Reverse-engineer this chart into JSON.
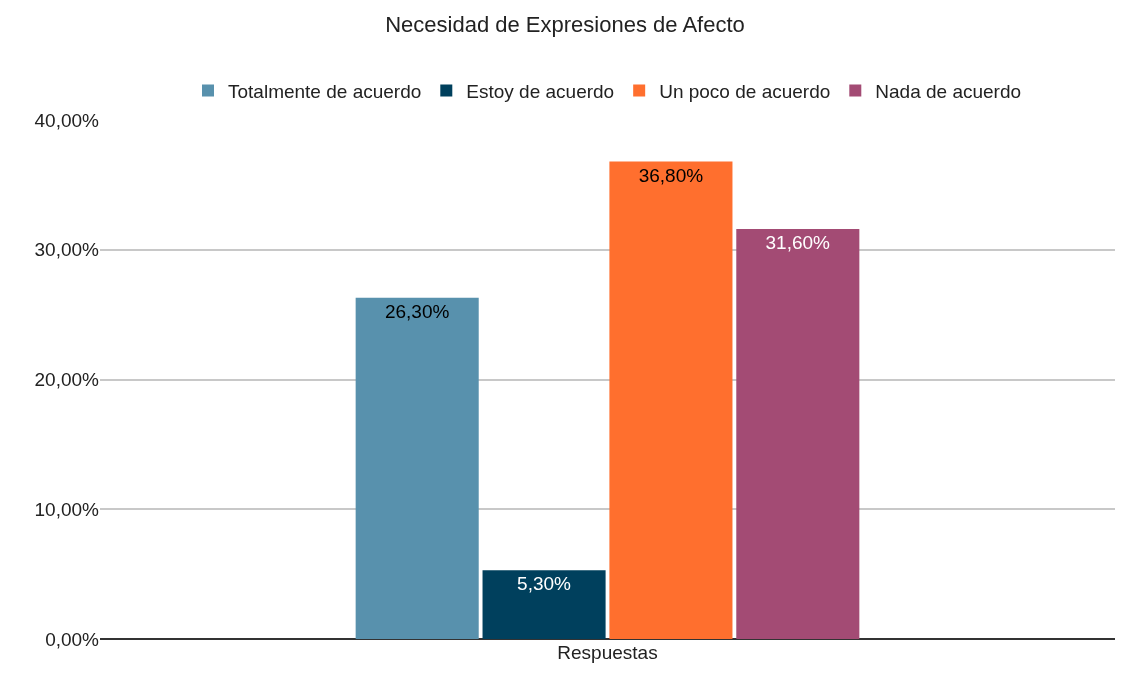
{
  "chart_data": {
    "type": "bar",
    "title": "Necesidad de Expresiones de Afecto",
    "categories": [
      "Respuestas"
    ],
    "series": [
      {
        "name": "Totalmente de acuerdo",
        "color": "#5891ad",
        "values": [
          26.3
        ],
        "value_labels": [
          "26,30%"
        ]
      },
      {
        "name": "Estoy de acuerdo",
        "color": "#00405d",
        "values": [
          5.3
        ],
        "value_labels": [
          "5,30%"
        ]
      },
      {
        "name": "Un poco de acuerdo",
        "color": "#ff6f2e",
        "values": [
          36.8
        ],
        "value_labels": [
          "36,80%"
        ]
      },
      {
        "name": "Nada de acuerdo",
        "color": "#a34b74",
        "values": [
          31.6
        ],
        "value_labels": [
          "31,60%"
        ]
      }
    ],
    "ylim": [
      0,
      40
    ],
    "yticks": [
      {
        "value": 0,
        "label": "0,00%"
      },
      {
        "value": 10,
        "label": "10,00%"
      },
      {
        "value": 20,
        "label": "20,00%"
      },
      {
        "value": 30,
        "label": "30,00%"
      },
      {
        "value": 40,
        "label": "40,00%"
      }
    ],
    "grid": "y",
    "legend": "top"
  }
}
